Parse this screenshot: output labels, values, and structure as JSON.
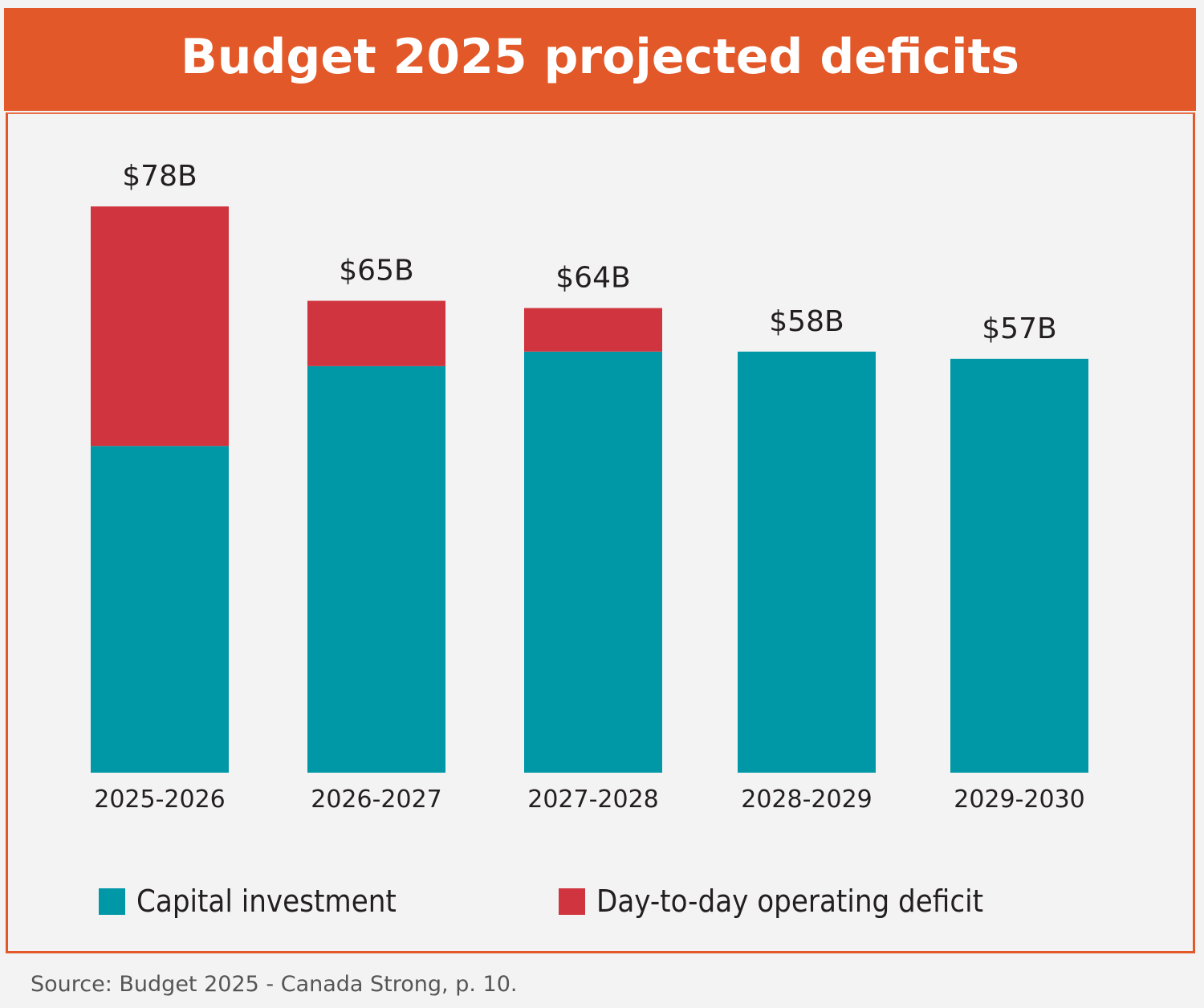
{
  "header": {
    "title": "Budget 2025 projected deficits"
  },
  "colors": {
    "accent": "#e25828",
    "capital": "#0097a7",
    "operating": "#d0343e",
    "text": "#231f20"
  },
  "chart_data": {
    "type": "bar",
    "stacked": true,
    "title": "Budget 2025 projected deficits",
    "xlabel": "",
    "ylabel": "",
    "unit": "billions CAD",
    "categories": [
      "2025-2026",
      "2026-2027",
      "2027-2028",
      "2028-2029",
      "2029-2030"
    ],
    "series": [
      {
        "name": "Capital investment",
        "color": "#0097a7",
        "values": [
          45,
          56,
          58,
          58,
          57
        ]
      },
      {
        "name": "Day-to-day operating deficit",
        "color": "#d0343e",
        "values": [
          33,
          9,
          6,
          0,
          0
        ]
      }
    ],
    "totals": [
      78,
      65,
      64,
      58,
      57
    ],
    "data_labels": [
      "$78B",
      "$65B",
      "$64B",
      "$58B",
      "$57B"
    ],
    "ylim": [
      0,
      78
    ],
    "grid": false,
    "axes_visible": false,
    "legend_position": "bottom"
  },
  "legend": {
    "items": [
      {
        "label": "Capital investment",
        "color": "#0097a7"
      },
      {
        "label": "Day-to-day operating deficit",
        "color": "#d0343e"
      }
    ]
  },
  "footer": {
    "source": "Source: Budget 2025 - Canada Strong, p. 10."
  }
}
